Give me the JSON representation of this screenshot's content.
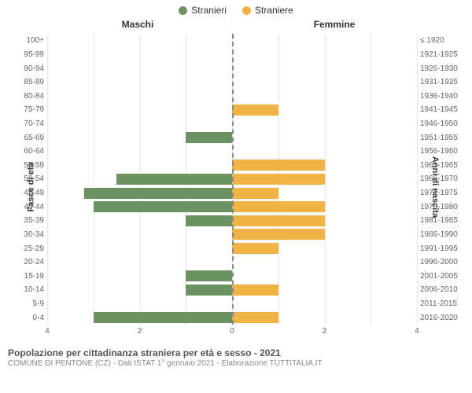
{
  "legend": {
    "male": {
      "label": "Stranieri",
      "color": "#6b9362"
    },
    "female": {
      "label": "Straniere",
      "color": "#f1b345"
    }
  },
  "headers": {
    "male": "Maschi",
    "female": "Femmine"
  },
  "axis_labels": {
    "left": "Fasce di età",
    "right": "Anni di nascita"
  },
  "footer": {
    "title": "Popolazione per cittadinanza straniera per età e sesso - 2021",
    "sub": "COMUNE DI PENTONE (CZ) - Dati ISTAT 1° gennaio 2021 - Elaborazione TUTTITALIA.IT"
  },
  "chart": {
    "type": "pyramid-bar",
    "x_max": 4,
    "x_ticks": [
      4,
      2,
      0,
      2,
      4
    ],
    "grid_color": "#e8e8e8",
    "background": "#ffffff",
    "bar_colors": {
      "male": "#6b9362",
      "female": "#f1b345"
    },
    "rows": [
      {
        "age": "100+",
        "birth": "≤ 1920",
        "male": 0,
        "female": 0
      },
      {
        "age": "95-99",
        "birth": "1921-1925",
        "male": 0,
        "female": 0
      },
      {
        "age": "90-94",
        "birth": "1926-1930",
        "male": 0,
        "female": 0
      },
      {
        "age": "85-89",
        "birth": "1931-1935",
        "male": 0,
        "female": 0
      },
      {
        "age": "80-84",
        "birth": "1936-1940",
        "male": 0,
        "female": 0
      },
      {
        "age": "75-79",
        "birth": "1941-1945",
        "male": 0,
        "female": 1
      },
      {
        "age": "70-74",
        "birth": "1946-1950",
        "male": 0,
        "female": 0
      },
      {
        "age": "65-69",
        "birth": "1951-1955",
        "male": 1,
        "female": 0
      },
      {
        "age": "60-64",
        "birth": "1956-1960",
        "male": 0,
        "female": 0
      },
      {
        "age": "55-59",
        "birth": "1961-1965",
        "male": 0,
        "female": 2
      },
      {
        "age": "50-54",
        "birth": "1966-1970",
        "male": 2.5,
        "female": 2
      },
      {
        "age": "45-49",
        "birth": "1971-1975",
        "male": 3.2,
        "female": 1
      },
      {
        "age": "40-44",
        "birth": "1976-1980",
        "male": 3,
        "female": 2
      },
      {
        "age": "35-39",
        "birth": "1981-1985",
        "male": 1,
        "female": 2
      },
      {
        "age": "30-34",
        "birth": "1986-1990",
        "male": 0,
        "female": 2
      },
      {
        "age": "25-29",
        "birth": "1991-1995",
        "male": 0,
        "female": 1
      },
      {
        "age": "20-24",
        "birth": "1996-2000",
        "male": 0,
        "female": 0
      },
      {
        "age": "15-19",
        "birth": "2001-2005",
        "male": 1,
        "female": 0
      },
      {
        "age": "10-14",
        "birth": "2006-2010",
        "male": 1,
        "female": 1
      },
      {
        "age": "5-9",
        "birth": "2011-2015",
        "male": 0,
        "female": 0
      },
      {
        "age": "0-4",
        "birth": "2016-2020",
        "male": 3,
        "female": 1
      }
    ]
  }
}
